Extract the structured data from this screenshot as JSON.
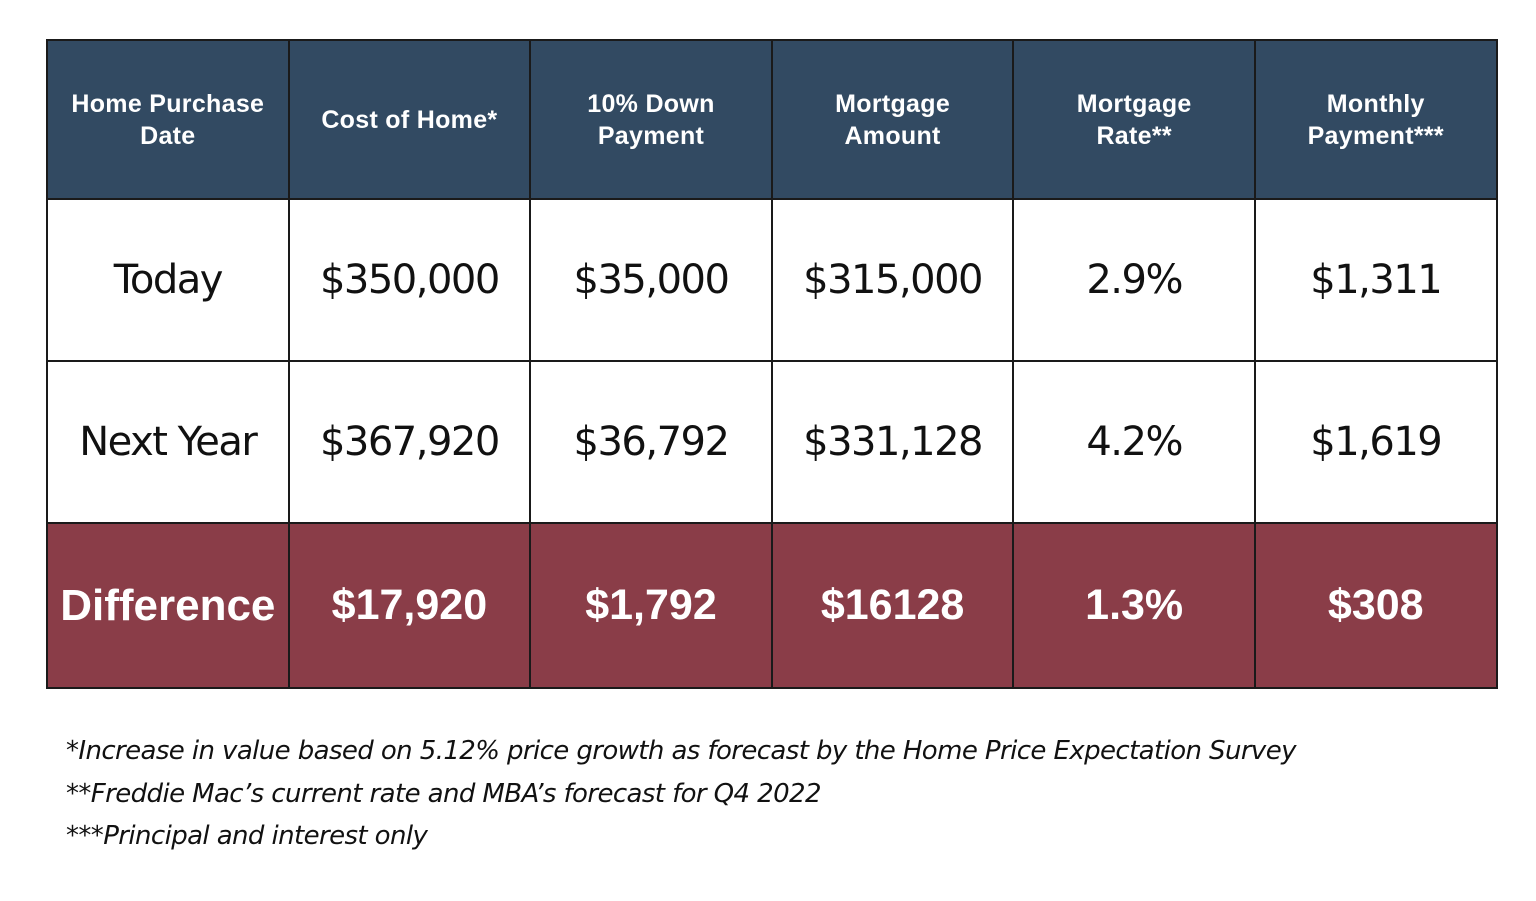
{
  "table": {
    "headers": [
      [
        "Home Purchase",
        "Date"
      ],
      [
        "Cost of Home*",
        ""
      ],
      [
        "10% Down",
        "Payment"
      ],
      [
        "Mortgage",
        "Amount"
      ],
      [
        "Mortgage",
        "Rate**"
      ],
      [
        "Monthly",
        "Payment***"
      ]
    ],
    "rows": [
      [
        "Today",
        "$350,000",
        "$35,000",
        "$315,000",
        "2.9%",
        "$1,311"
      ],
      [
        "Next Year",
        "$367,920",
        "$36,792",
        "$331,128",
        "4.2%",
        "$1,619"
      ]
    ],
    "difference": [
      "Difference",
      "$17,920",
      "$1,792",
      "$16128",
      "1.3%",
      "$308"
    ]
  },
  "footnotes": [
    "*Increase in value based on 5.12% price growth as forecast by the Home Price Expectation Survey",
    "**Freddie Mac’s current rate and MBA’s forecast for Q4 2022",
    "***Principal and interest only"
  ],
  "colors": {
    "header_bg": "#324a62",
    "difference_bg": "#8a3d48",
    "border": "#1a1a1a"
  },
  "chart_data": {
    "type": "table",
    "title": "",
    "columns": [
      "Home Purchase Date",
      "Cost of Home*",
      "10% Down Payment",
      "Mortgage Amount",
      "Mortgage Rate**",
      "Monthly Payment***"
    ],
    "rows": [
      [
        "Today",
        "$350,000",
        "$35,000",
        "$315,000",
        "2.9%",
        "$1,311"
      ],
      [
        "Next Year",
        "$367,920",
        "$36,792",
        "$331,128",
        "4.2%",
        "$1,619"
      ],
      [
        "Difference",
        "$17,920",
        "$1,792",
        "$16128",
        "1.3%",
        "$308"
      ]
    ]
  }
}
